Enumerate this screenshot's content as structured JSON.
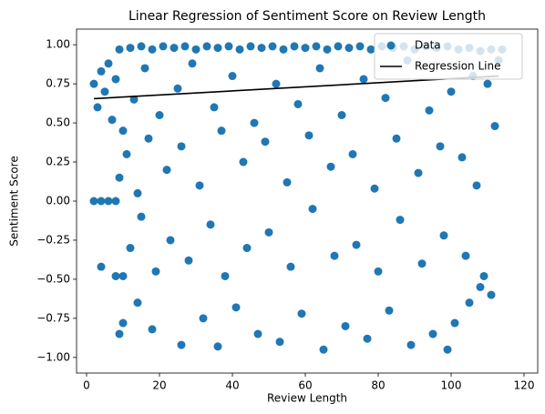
{
  "chart_data": {
    "type": "scatter",
    "title": "Linear Regression of Sentiment Score on Review Length",
    "xlabel": "Review Length",
    "ylabel": "Sentiment Score",
    "xlim": [
      -2.75,
      123.75
    ],
    "ylim": [
      -1.1,
      1.1
    ],
    "xticks": [
      0,
      20,
      40,
      60,
      80,
      100,
      120
    ],
    "yticks": [
      {
        "value": -1,
        "label": "−1.00"
      },
      {
        "value": -0.75,
        "label": "−0.75"
      },
      {
        "value": -0.5,
        "label": "−0.50"
      },
      {
        "value": -0.25,
        "label": "−0.25"
      },
      {
        "value": 0,
        "label": "0.00"
      },
      {
        "value": 0.25,
        "label": "0.25"
      },
      {
        "value": 0.5,
        "label": "0.50"
      },
      {
        "value": 0.75,
        "label": "0.75"
      },
      {
        "value": 1,
        "label": "1.00"
      }
    ],
    "legend": "upper right",
    "series": [
      {
        "name": "Data",
        "color": "#1f77b4",
        "kind": "points",
        "x": [
          6,
          9,
          12,
          15,
          18,
          21,
          24,
          27,
          30,
          33,
          36,
          39,
          42,
          45,
          48,
          51,
          54,
          57,
          60,
          63,
          66,
          69,
          72,
          75,
          78,
          81,
          84,
          87,
          90,
          93,
          96,
          99,
          102,
          105,
          108,
          111,
          114,
          2,
          3,
          4,
          5,
          7,
          8,
          10,
          13,
          16,
          20,
          25,
          29,
          35,
          40,
          46,
          52,
          58,
          64,
          70,
          76,
          82,
          88,
          94,
          100,
          106,
          110,
          112,
          113,
          2,
          4,
          6,
          8,
          9,
          11,
          14,
          17,
          22,
          26,
          31,
          37,
          43,
          49,
          55,
          61,
          67,
          73,
          79,
          85,
          91,
          97,
          103,
          107,
          4,
          8,
          10,
          12,
          15,
          19,
          23,
          28,
          34,
          38,
          44,
          50,
          56,
          62,
          68,
          74,
          80,
          86,
          92,
          98,
          104,
          109,
          111,
          9,
          10,
          14,
          18,
          26,
          32,
          36,
          41,
          47,
          53,
          59,
          65,
          71,
          77,
          83,
          89,
          95,
          99,
          101,
          105,
          108
        ],
        "y": [
          0.88,
          0.97,
          0.98,
          0.99,
          0.97,
          0.99,
          0.98,
          0.99,
          0.97,
          0.99,
          0.98,
          0.99,
          0.97,
          0.99,
          0.98,
          0.99,
          0.97,
          0.99,
          0.98,
          0.99,
          0.97,
          0.99,
          0.98,
          0.99,
          0.97,
          0.99,
          0.98,
          0.99,
          0.97,
          0.99,
          0.98,
          0.99,
          0.97,
          0.98,
          0.96,
          0.97,
          0.97,
          0.75,
          0.6,
          0.83,
          0.7,
          0.52,
          0.78,
          0.45,
          0.65,
          0.85,
          0.55,
          0.72,
          0.88,
          0.6,
          0.8,
          0.5,
          0.75,
          0.62,
          0.85,
          0.55,
          0.78,
          0.66,
          0.9,
          0.58,
          0.7,
          0.8,
          0.75,
          0.48,
          0.9,
          0,
          0,
          0,
          0,
          0.15,
          0.3,
          0.05,
          0.4,
          0.2,
          0.35,
          0.1,
          0.45,
          0.25,
          0.38,
          0.12,
          0.42,
          0.22,
          0.3,
          0.08,
          0.4,
          0.18,
          0.35,
          0.28,
          0.1,
          -0.42,
          -0.48,
          -0.48,
          -0.3,
          -0.1,
          -0.45,
          -0.25,
          -0.38,
          -0.15,
          -0.48,
          -0.3,
          -0.2,
          -0.42,
          -0.05,
          -0.35,
          -0.28,
          -0.45,
          -0.12,
          -0.4,
          -0.22,
          -0.35,
          -0.48,
          -0.6,
          -0.85,
          -0.78,
          -0.65,
          -0.82,
          -0.92,
          -0.75,
          -0.93,
          -0.68,
          -0.85,
          -0.9,
          -0.72,
          -0.95,
          -0.8,
          -0.88,
          -0.7,
          -0.92,
          -0.85,
          -0.95,
          -0.78,
          -0.65,
          -0.55
        ]
      },
      {
        "name": "Regression Line",
        "color": "#000000",
        "kind": "line",
        "x": [
          2,
          113
        ],
        "y": [
          0.655,
          0.8
        ]
      }
    ]
  }
}
